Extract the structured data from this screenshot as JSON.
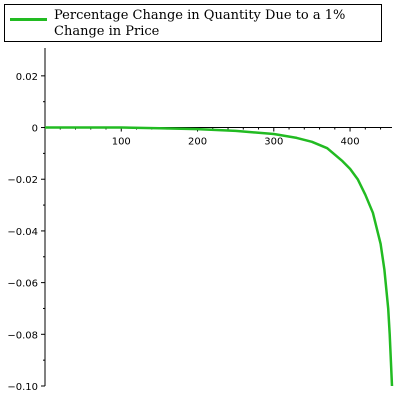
{
  "chart_data": {
    "type": "line",
    "title": "",
    "xlabel": "",
    "ylabel": "",
    "xlim": [
      0,
      455
    ],
    "ylim": [
      -0.1,
      0.03
    ],
    "x_ticks": [
      100,
      200,
      300,
      400
    ],
    "y_ticks": [
      0.02,
      0,
      -0.02,
      -0.04,
      -0.06,
      -0.08,
      -0.1
    ],
    "y_tick_labels": [
      "0.02",
      "0",
      "−0.02",
      "−0.04",
      "−0.06",
      "−0.08",
      "−0.10"
    ],
    "grid": false,
    "legend_position": "top",
    "series": [
      {
        "name": "Percentage Change in Quantity Due to a 1% Change in Price",
        "color": "#22bb22",
        "x": [
          0,
          50,
          100,
          150,
          200,
          250,
          300,
          330,
          350,
          370,
          390,
          400,
          410,
          420,
          430,
          440,
          445,
          450,
          452,
          455
        ],
        "y": [
          0,
          0,
          0,
          -0.0003,
          -0.0006,
          -0.0013,
          -0.0025,
          -0.004,
          -0.0055,
          -0.008,
          -0.013,
          -0.016,
          -0.02,
          -0.026,
          -0.033,
          -0.045,
          -0.055,
          -0.07,
          -0.08,
          -0.1
        ]
      }
    ]
  }
}
